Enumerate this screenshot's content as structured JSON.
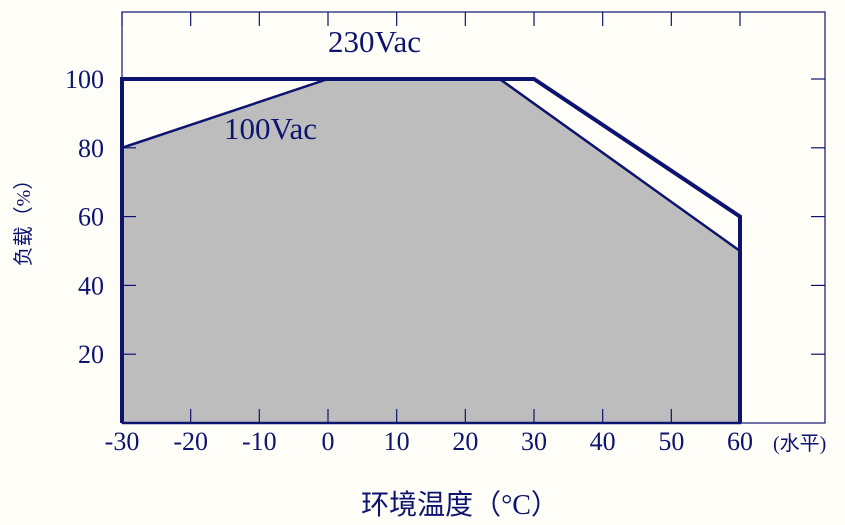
{
  "chart_data": {
    "type": "area",
    "title": "",
    "xlabel": "环境温度（°C）",
    "ylabel": "负载（%）",
    "x_unit_note": "(水平)",
    "xlim": [
      -30,
      80
    ],
    "ylim": [
      0,
      115
    ],
    "x_ticks": [
      "-30",
      "-20",
      "-10",
      "0",
      "10",
      "20",
      "30",
      "40",
      "50",
      "60"
    ],
    "y_ticks": [
      "20",
      "40",
      "60",
      "80",
      "100"
    ],
    "grid": false,
    "series": [
      {
        "name": "230Vac",
        "points": [
          [
            -30,
            0
          ],
          [
            -30,
            100
          ],
          [
            30,
            100
          ],
          [
            60,
            60
          ],
          [
            60,
            0
          ]
        ],
        "filled": false
      },
      {
        "name": "100Vac",
        "points": [
          [
            -30,
            0
          ],
          [
            -30,
            80
          ],
          [
            0,
            100
          ],
          [
            25,
            100
          ],
          [
            60,
            50
          ],
          [
            60,
            0
          ]
        ],
        "filled": true
      }
    ],
    "colors": {
      "line": "#0d1470",
      "fill": "#bdbdbd",
      "axis_text": "#0d1470",
      "background": "#fffdf7"
    }
  }
}
